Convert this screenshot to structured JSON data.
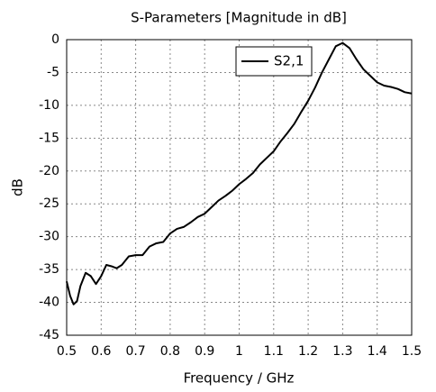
{
  "chart_data": {
    "type": "line",
    "title": "S-Parameters [Magnitude in dB]",
    "xlabel": "Frequency / GHz",
    "ylabel": "dB",
    "x": [
      0.5,
      0.51,
      0.52,
      0.53,
      0.54,
      0.555,
      0.57,
      0.585,
      0.6,
      0.615,
      0.63,
      0.645,
      0.66,
      0.68,
      0.7,
      0.72,
      0.74,
      0.76,
      0.78,
      0.8,
      0.82,
      0.84,
      0.86,
      0.88,
      0.9,
      0.92,
      0.94,
      0.96,
      0.98,
      1.0,
      1.02,
      1.04,
      1.06,
      1.08,
      1.1,
      1.12,
      1.14,
      1.16,
      1.18,
      1.2,
      1.22,
      1.24,
      1.26,
      1.28,
      1.3,
      1.32,
      1.34,
      1.36,
      1.38,
      1.4,
      1.42,
      1.44,
      1.46,
      1.48,
      1.5
    ],
    "series": [
      {
        "name": "S2,1",
        "color": "#000000",
        "values": [
          -36.8,
          -39,
          -40.3,
          -39.8,
          -37.5,
          -35.5,
          -36,
          -37.2,
          -36,
          -34.3,
          -34.5,
          -34.8,
          -34.3,
          -33,
          -32.8,
          -32.8,
          -31.5,
          -31,
          -30.8,
          -29.5,
          -28.8,
          -28.5,
          -27.8,
          -27,
          -26.5,
          -25.5,
          -24.5,
          -23.8,
          -23,
          -22,
          -21.2,
          -20.3,
          -19,
          -18,
          -17,
          -15.5,
          -14.2,
          -12.8,
          -11,
          -9.3,
          -7.3,
          -5,
          -3,
          -1,
          -0.5,
          -1.3,
          -3,
          -4.5,
          -5.5,
          -6.5,
          -7,
          -7.2,
          -7.5,
          -8,
          -8.2
        ]
      }
    ],
    "xlim": [
      0.5,
      1.5
    ],
    "xticks": [
      0.5,
      0.6,
      0.7,
      0.8,
      0.9,
      1,
      1.1,
      1.2,
      1.3,
      1.4,
      1.5
    ],
    "ylim": [
      -45,
      0
    ],
    "yticks": [
      0,
      -5,
      -10,
      -15,
      -20,
      -25,
      -30,
      -35,
      -40,
      -45
    ],
    "grid": true,
    "legend": "upper right"
  }
}
